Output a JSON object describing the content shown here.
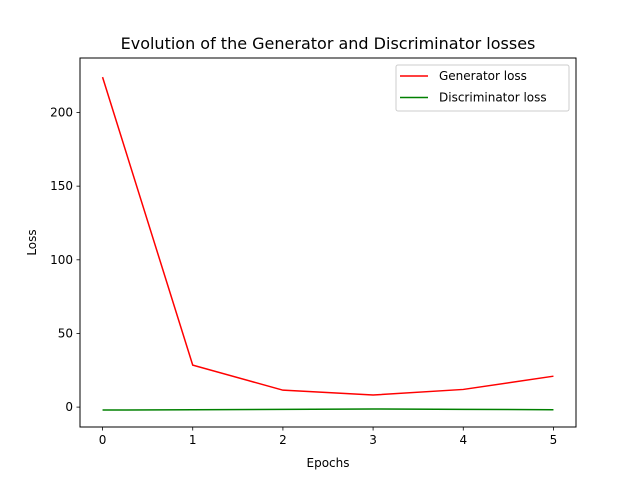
{
  "chart_data": {
    "type": "line",
    "title": "Evolution of the Generator and Discriminator losses",
    "xlabel": "Epochs",
    "ylabel": "Loss",
    "x": [
      0,
      1,
      2,
      3,
      4,
      5
    ],
    "xlim": [
      -0.25,
      5.25
    ],
    "ylim": [
      -13.5,
      237
    ],
    "xticks": [
      0,
      1,
      2,
      3,
      4,
      5
    ],
    "yticks": [
      0,
      50,
      100,
      150,
      200
    ],
    "grid": false,
    "legend_position": "top-right",
    "series": [
      {
        "name": "Generator loss",
        "color": "#ff0000",
        "values": [
          224,
          28.5,
          11.5,
          8.2,
          12,
          21
        ]
      },
      {
        "name": "Discriminator loss",
        "color": "#008000",
        "values": [
          -2,
          -1.8,
          -1.5,
          -1.3,
          -1.5,
          -1.8
        ]
      }
    ]
  }
}
